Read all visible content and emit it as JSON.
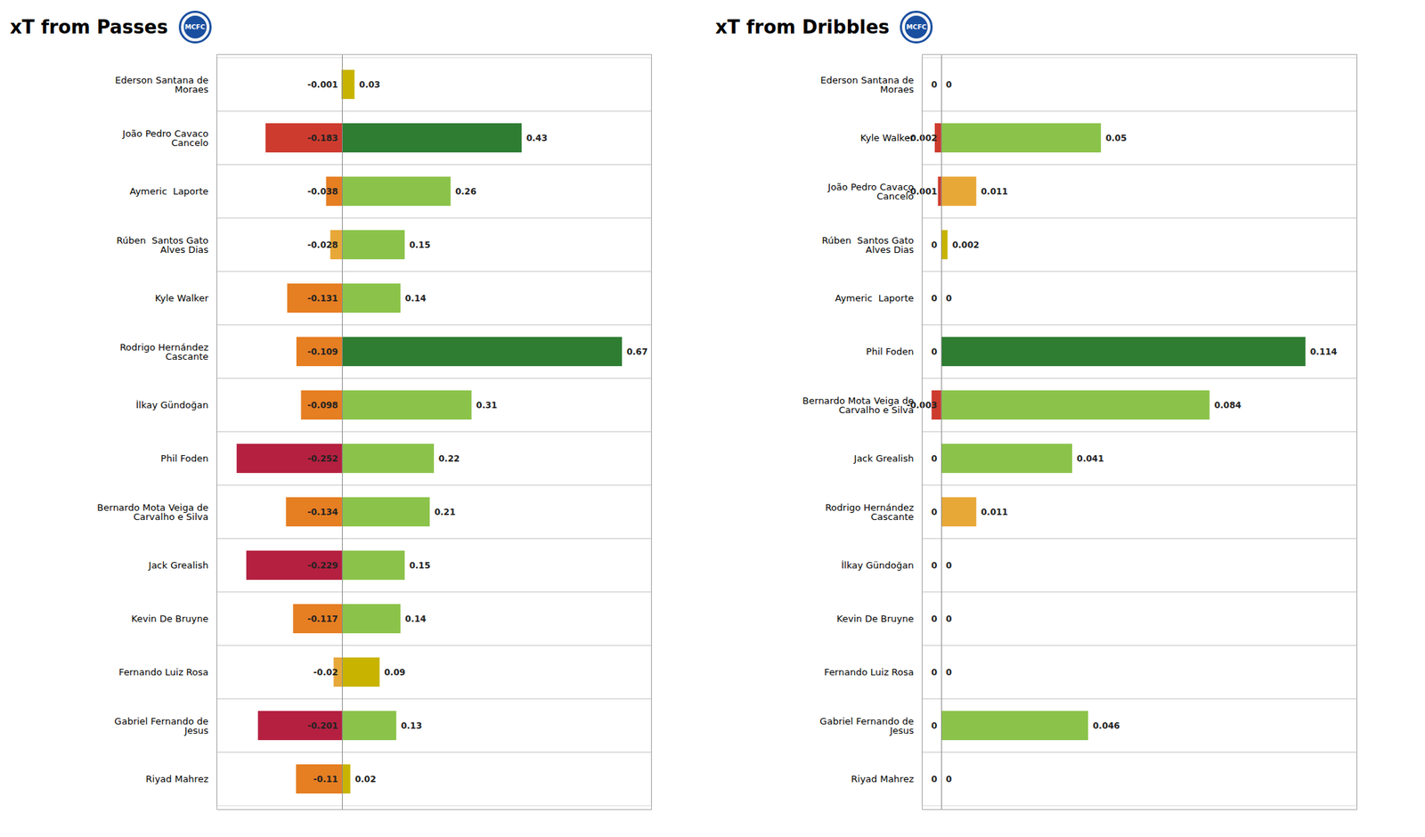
{
  "chart_data": [
    {
      "type": "bar",
      "orientation": "horizontal",
      "title": "xT from Passes",
      "categories": [
        "Ederson Santana de\nMoraes",
        "João Pedro Cavaco\nCancelo",
        "Aymeric  Laporte",
        "Rúben  Santos Gato\nAlves Dias",
        "Kyle Walker",
        "Rodrigo Hernández\nCascante",
        "İlkay Gündoğan",
        "Phil Foden",
        "Bernardo Mota Veiga de\nCarvalho e Silva",
        "Jack Grealish",
        "Kevin De Bruyne",
        "Fernando Luiz Rosa",
        "Gabriel Fernando de\nJesus",
        "Riyad Mahrez"
      ],
      "series": [
        {
          "values": [
            -0.001,
            -0.183,
            -0.038,
            -0.028,
            -0.131,
            -0.109,
            -0.098,
            -0.252,
            -0.134,
            -0.229,
            -0.117,
            -0.02,
            -0.201,
            -0.11
          ],
          "colors": [
            "#c8b400",
            "#cd3b2e",
            "#e67e22",
            "#e8a838",
            "#e67e22",
            "#e67e22",
            "#e67e22",
            "#b52040",
            "#e67e22",
            "#b52040",
            "#e67e22",
            "#e8a838",
            "#b52040",
            "#e67e22"
          ]
        },
        {
          "values": [
            0.03,
            0.43,
            0.26,
            0.15,
            0.14,
            0.67,
            0.31,
            0.22,
            0.21,
            0.15,
            0.14,
            0.09,
            0.13,
            0.02
          ],
          "colors": [
            "#c8b400",
            "#2e7d32",
            "#8bc34a",
            "#8bc34a",
            "#8bc34a",
            "#2e7d32",
            "#8bc34a",
            "#8bc34a",
            "#8bc34a",
            "#8bc34a",
            "#8bc34a",
            "#c8b400",
            "#8bc34a",
            "#c8b400"
          ]
        }
      ],
      "xlim": [
        -0.3,
        0.74
      ],
      "data_labels": true,
      "tick_labels": "y",
      "grid": true,
      "annotations": [
        {
          "text": "MCFC",
          "color": "#1a4fa0"
        }
      ]
    },
    {
      "type": "bar",
      "orientation": "horizontal",
      "title": "xT from Dribbles",
      "categories": [
        "Ederson Santana de\nMoraes",
        "Kyle Walker",
        "João Pedro Cavaco\nCancelo",
        "Rúben  Santos Gato\nAlves Dias",
        "Aymeric  Laporte",
        "Phil Foden",
        "Bernardo Mota Veiga de\nCarvalho e Silva",
        "Jack Grealish",
        "Rodrigo Hernández\nCascante",
        "İlkay Gündoğan",
        "Kevin De Bruyne",
        "Fernando Luiz Rosa",
        "Gabriel Fernando de\nJesus",
        "Riyad Mahrez"
      ],
      "series": [
        {
          "values": [
            0,
            -0.002,
            -0.001,
            0,
            0,
            0,
            -0.003,
            0,
            0,
            0,
            0,
            0,
            0,
            0
          ],
          "colors": [
            "#c8b400",
            "#cd3b2e",
            "#cd3b2e",
            "#c8b400",
            "#c8b400",
            "#c8b400",
            "#cd3b2e",
            "#c8b400",
            "#c8b400",
            "#c8b400",
            "#c8b400",
            "#c8b400",
            "#c8b400",
            "#c8b400"
          ]
        },
        {
          "values": [
            0,
            0.05,
            0.011,
            0.002,
            0,
            0.114,
            0.084,
            0.041,
            0.011,
            0,
            0,
            0,
            0.046,
            0
          ],
          "colors": [
            "#c8b400",
            "#8bc34a",
            "#e8a838",
            "#c8b400",
            "#c8b400",
            "#2e7d32",
            "#8bc34a",
            "#8bc34a",
            "#e8a838",
            "#c8b400",
            "#c8b400",
            "#c8b400",
            "#8bc34a",
            "#c8b400"
          ]
        }
      ],
      "xlim": [
        -0.006,
        0.13
      ],
      "data_labels": true,
      "tick_labels": "y",
      "grid": true,
      "annotations": [
        {
          "text": "MCFC",
          "color": "#1a4fa0"
        }
      ]
    }
  ]
}
